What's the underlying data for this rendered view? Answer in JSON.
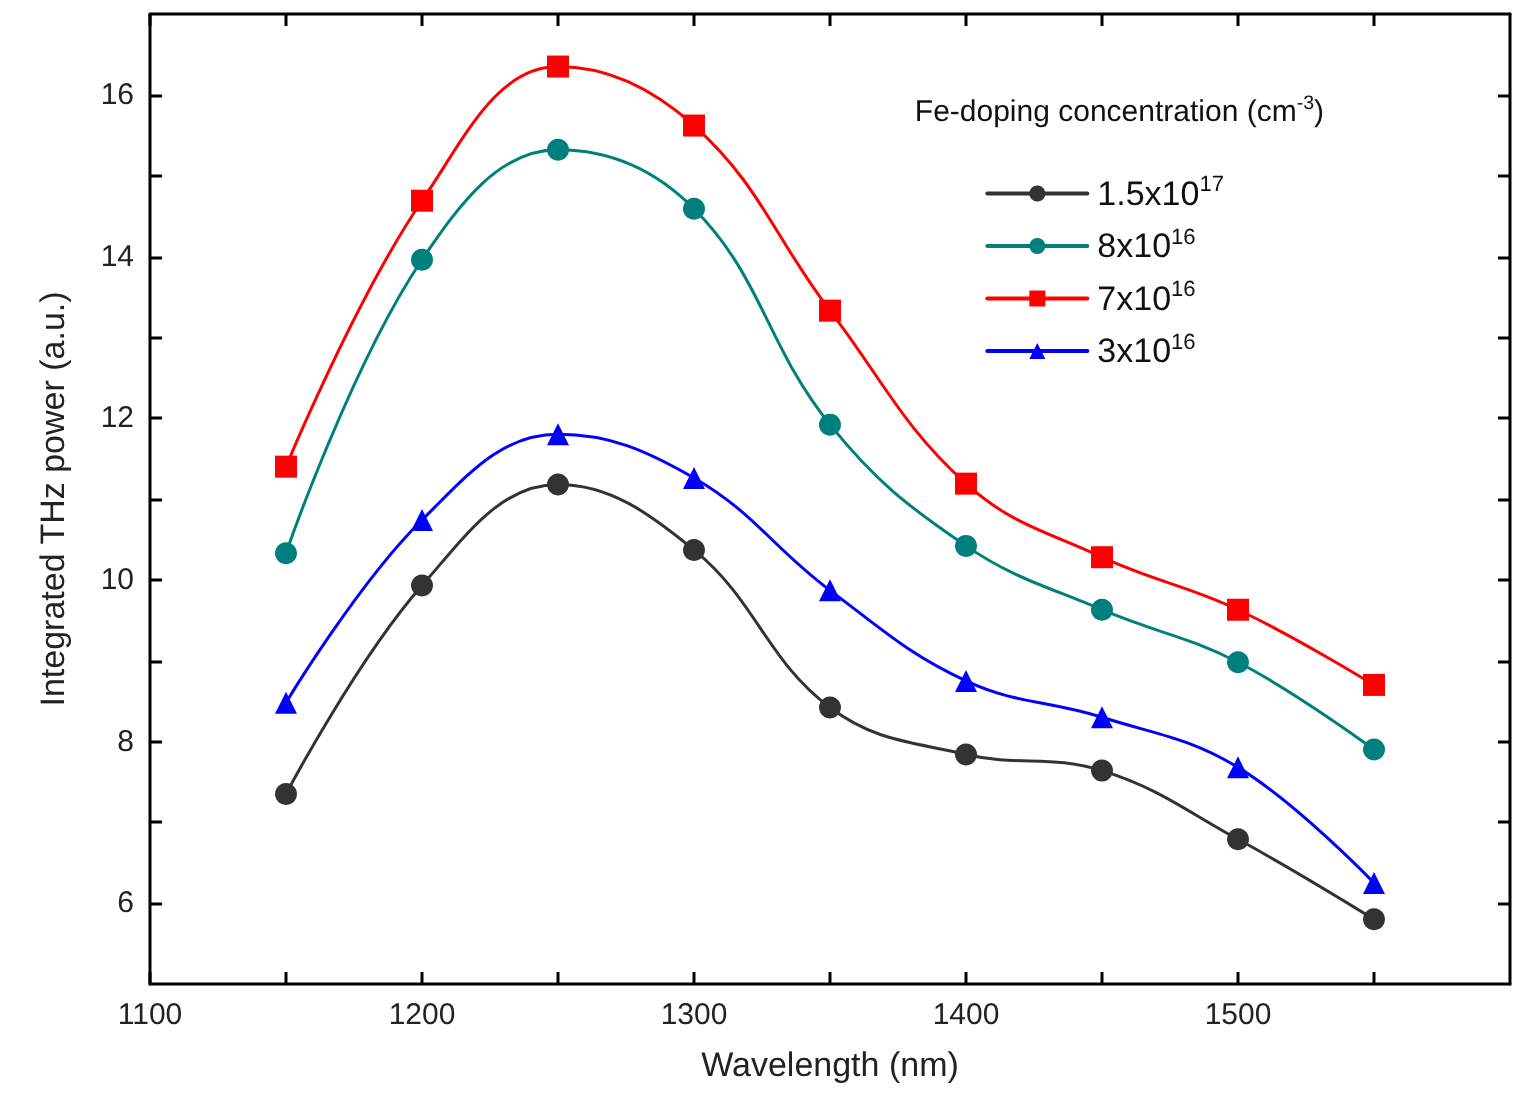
{
  "chart_data": {
    "type": "line",
    "xlabel": "Wavelength (nm)",
    "ylabel": "Integrated THz power (a.u.)",
    "legend_title": "Fe-doping concentration (cm$^{-3}$)",
    "x": [
      1150,
      1200,
      1250,
      1300,
      1350,
      1400,
      1450,
      1500,
      1550
    ],
    "series": [
      {
        "name": "1.5x10$^{17}$",
        "color": "#333333",
        "marker": "circle",
        "values": [
          7.35,
          9.93,
          11.18,
          10.37,
          8.42,
          7.84,
          7.64,
          6.79,
          5.8
        ]
      },
      {
        "name": "8x10$^{16}$",
        "color": "#007f7f",
        "marker": "circle",
        "values": [
          10.33,
          13.96,
          15.32,
          14.59,
          11.92,
          10.42,
          9.63,
          8.98,
          7.9
        ]
      },
      {
        "name": "7x10$^{16}$",
        "color": "#ff0000",
        "marker": "square",
        "values": [
          11.4,
          14.69,
          16.35,
          15.62,
          13.33,
          11.19,
          10.28,
          9.63,
          8.7
        ]
      },
      {
        "name": "3x10$^{16}$",
        "color": "#0000ff",
        "marker": "triangle",
        "values": [
          8.48,
          10.74,
          11.8,
          11.26,
          9.87,
          8.75,
          8.3,
          7.68,
          6.25
        ]
      }
    ],
    "xlim": [
      1100,
      1600
    ],
    "ylim": [
      5,
      17
    ],
    "xticks": [
      1100,
      {
        "value": 1150,
        "label": null
      },
      1200,
      {
        "value": 1250,
        "label": null
      },
      1300,
      {
        "value": 1350,
        "label": null
      },
      1400,
      {
        "value": 1450,
        "label": null
      },
      1500,
      {
        "value": 1550,
        "label": null
      }
    ],
    "yticks": [
      6,
      {
        "value": 7,
        "label": null
      },
      8,
      {
        "value": 9,
        "label": null
      },
      10,
      {
        "value": 11,
        "label": null
      },
      12,
      {
        "value": 13,
        "label": null
      },
      14,
      {
        "value": 15,
        "label": null
      },
      16
    ],
    "grid": false,
    "legend": "top right",
    "line_style": "solid"
  }
}
